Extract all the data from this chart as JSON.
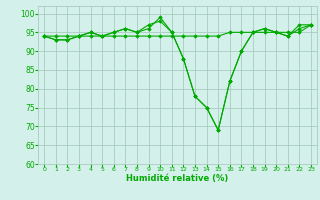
{
  "title": "",
  "xlabel": "Humidité relative (%)",
  "ylabel": "",
  "bg_color": "#d4f0ea",
  "grid_color": "#aaccc0",
  "line_color": "#00aa00",
  "marker_color": "#00aa00",
  "xlim": [
    -0.5,
    23.5
  ],
  "ylim": [
    60,
    102
  ],
  "yticks": [
    60,
    65,
    70,
    75,
    80,
    85,
    90,
    95,
    100
  ],
  "xticks": [
    0,
    1,
    2,
    3,
    4,
    5,
    6,
    7,
    8,
    9,
    10,
    11,
    12,
    13,
    14,
    15,
    16,
    17,
    18,
    19,
    20,
    21,
    22,
    23
  ],
  "series": [
    [
      94,
      93,
      93,
      94,
      95,
      94,
      95,
      96,
      95,
      96,
      99,
      95,
      88,
      78,
      75,
      69,
      82,
      90,
      95,
      96,
      95,
      94,
      96,
      97
    ],
    [
      94,
      93,
      93,
      94,
      95,
      94,
      95,
      96,
      95,
      97,
      98,
      95,
      88,
      78,
      75,
      69,
      82,
      90,
      95,
      96,
      95,
      94,
      97,
      97
    ],
    [
      94,
      94,
      94,
      94,
      94,
      94,
      94,
      94,
      94,
      94,
      94,
      94,
      94,
      94,
      94,
      94,
      95,
      95,
      95,
      95,
      95,
      95,
      95,
      97
    ]
  ]
}
